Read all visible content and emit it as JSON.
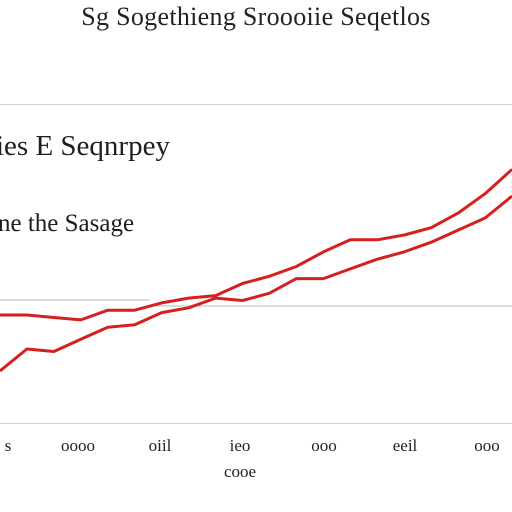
{
  "chart_data": {
    "type": "line",
    "title": "Sg Sogethieng Sroooiie Seqetlos",
    "subtitles": [
      "ies E Seqnrpey",
      "ne the Sasage"
    ],
    "xlabel": "cooe",
    "ylabel": "",
    "ticks": [
      "s",
      "oooo",
      "oiil",
      "ieo",
      "ooo",
      "eeil",
      "ooo"
    ],
    "x": [
      0,
      1,
      2,
      3,
      4,
      5,
      6,
      7,
      8,
      9,
      10,
      11,
      12,
      13,
      14,
      15,
      16,
      17,
      18,
      19
    ],
    "series": [
      {
        "color": "#d61f1f",
        "values": [
          2.0,
          2.0,
          1.9,
          1.8,
          2.2,
          2.2,
          2.5,
          2.7,
          2.8,
          3.3,
          3.6,
          4.0,
          4.6,
          5.1,
          5.1,
          5.3,
          5.6,
          6.2,
          7.0,
          8.0
        ]
      },
      {
        "color": "#d61f1f",
        "values": [
          -0.3,
          0.6,
          0.5,
          1.0,
          1.5,
          1.6,
          2.1,
          2.3,
          2.7,
          2.6,
          2.9,
          3.5,
          3.5,
          3.9,
          4.3,
          4.6,
          5.0,
          5.5,
          6.0,
          6.9
        ]
      }
    ],
    "ylim": [
      -1.5,
      8.8
    ],
    "grid": false,
    "legend": "none"
  }
}
